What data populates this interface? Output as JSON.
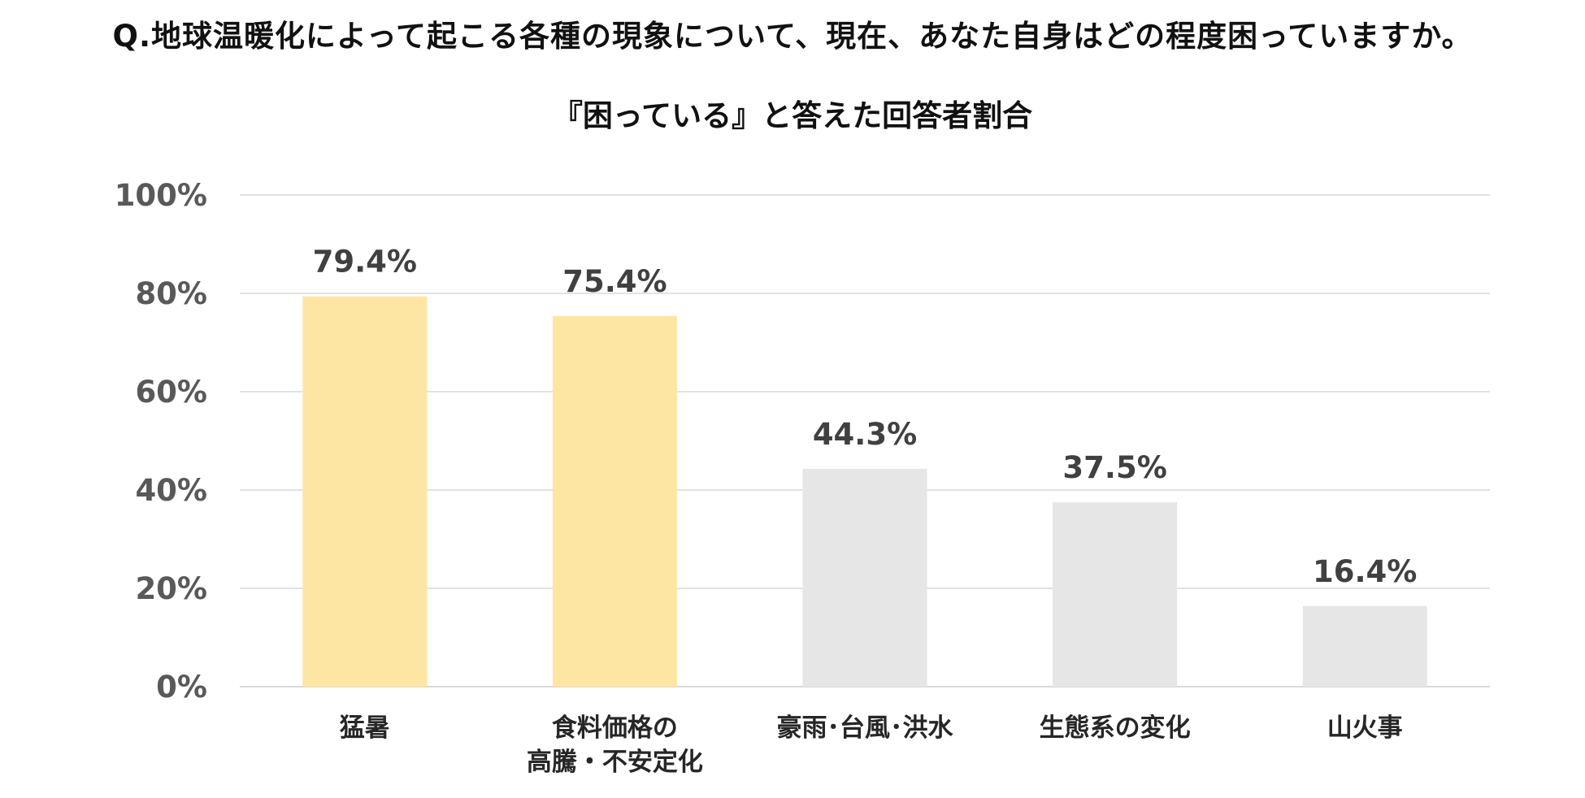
{
  "question": "Q.地球温暖化によって起こる各種の現象について、現在、あなた自身はどの程度困っていますか。",
  "chart_data": {
    "type": "bar",
    "title": "『困っている』と答えた回答者割合",
    "categories": [
      [
        "猛暑"
      ],
      [
        "食料価格の",
        "高騰・不安定化"
      ],
      [
        "豪雨･台風･洪水"
      ],
      [
        "生態系の変化"
      ],
      [
        "山火事"
      ]
    ],
    "values": [
      79.4,
      75.4,
      44.3,
      37.5,
      16.4
    ],
    "value_labels": [
      "79.4%",
      "75.4%",
      "44.3%",
      "37.5%",
      "16.4%"
    ],
    "bar_colors": [
      "#FDE5A3",
      "#FDE5A3",
      "#E6E6E6",
      "#E6E6E6",
      "#E6E6E6"
    ],
    "ylim": [
      0,
      100
    ],
    "yticks": [
      0,
      20,
      40,
      60,
      80,
      100
    ],
    "ytick_labels": [
      "0%",
      "20%",
      "40%",
      "60%",
      "80%",
      "100%"
    ],
    "grid": true,
    "gridline_color": "#D9D9D9",
    "xlabel": "",
    "ylabel": ""
  }
}
